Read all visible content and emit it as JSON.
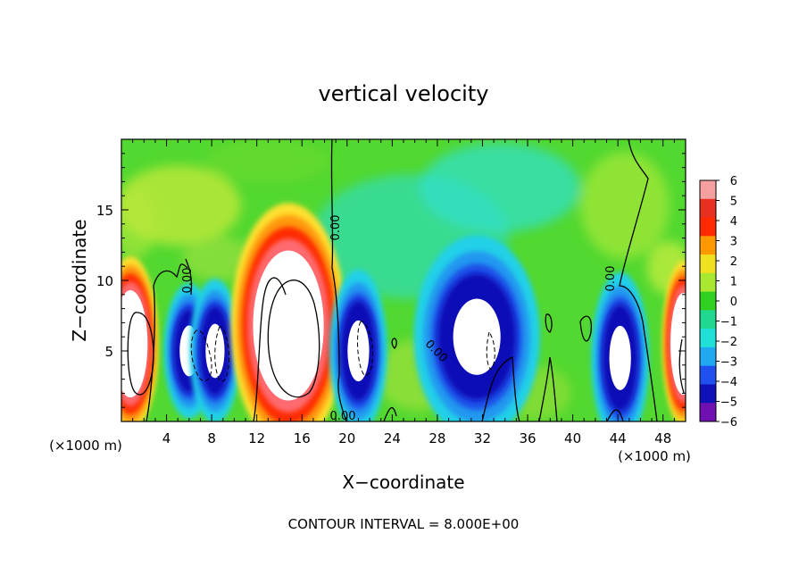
{
  "chart_data": {
    "type": "heatmap",
    "title": "vertical velocity",
    "xlabel": "X−coordinate",
    "ylabel": "Z−coordinate",
    "x_unit_left": "(×1000 m)",
    "x_unit_right": "(×1000 m)",
    "footer": "CONTOUR INTERVAL = 8.000E+00",
    "xlim": [
      0,
      50
    ],
    "ylim": [
      0,
      20
    ],
    "x_ticks": [
      4,
      8,
      12,
      16,
      20,
      24,
      28,
      32,
      36,
      40,
      44,
      48
    ],
    "y_ticks": [
      5,
      10,
      15
    ],
    "grid": false,
    "colorbar": {
      "levels": [
        "6",
        "5",
        "4",
        "3",
        "2",
        "1",
        "0",
        "−1",
        "−2",
        "−3",
        "−4",
        "−5",
        "−6"
      ],
      "colors": [
        "#f4a0a0",
        "#e83020",
        "#ff2a00",
        "#ff9900",
        "#f0e020",
        "#a8e830",
        "#30d020",
        "#20d890",
        "#20e0d8",
        "#20a8f0",
        "#2050f0",
        "#1010b8",
        "#7010b0"
      ]
    },
    "contour_labels": [
      "0.00",
      "0.00",
      "0.00",
      "0.00",
      "0.00"
    ],
    "features": [
      {
        "kind": "updraft",
        "x": 0.8,
        "z": 5.5,
        "rx": 1.6,
        "rz": 4.0
      },
      {
        "kind": "downdraft",
        "x": 6.0,
        "z": 5.0,
        "rx": 1.4,
        "rz": 3.0
      },
      {
        "kind": "downdraft",
        "x": 8.3,
        "z": 5.0,
        "rx": 1.4,
        "rz": 3.2
      },
      {
        "kind": "updraft",
        "x": 14.8,
        "z": 6.8,
        "rx": 3.3,
        "rz": 5.6
      },
      {
        "kind": "downdraft",
        "x": 21.0,
        "z": 5.0,
        "rx": 1.6,
        "rz": 3.6
      },
      {
        "kind": "downdraft",
        "x": 31.5,
        "z": 6.0,
        "rx": 3.5,
        "rz": 4.5
      },
      {
        "kind": "downdraft",
        "x": 44.2,
        "z": 4.5,
        "rx": 1.6,
        "rz": 3.8
      },
      {
        "kind": "updraft",
        "x": 49.8,
        "z": 5.5,
        "rx": 1.2,
        "rz": 3.8
      }
    ]
  }
}
